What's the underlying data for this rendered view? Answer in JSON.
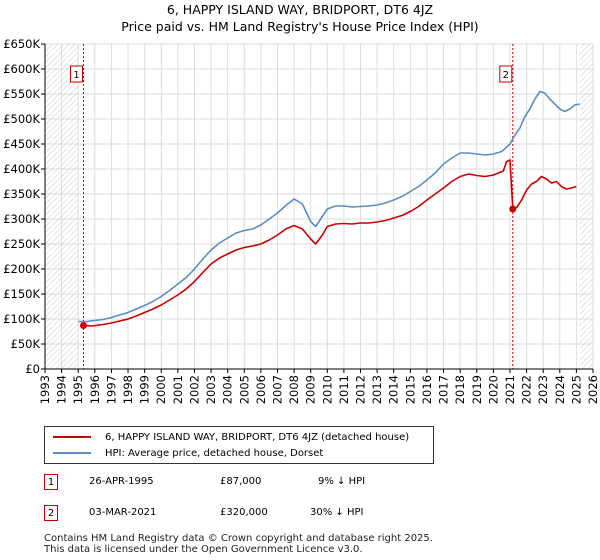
{
  "chart_data": {
    "type": "line",
    "title": "6, HAPPY ISLAND WAY, BRIDPORT, DT6 4JZ",
    "subtitle": "Price paid vs. HM Land Registry's House Price Index (HPI)",
    "xlim": [
      1993,
      2026
    ],
    "ylim": [
      0,
      650000
    ],
    "xticks": [
      "1993",
      "1994",
      "1995",
      "1996",
      "1997",
      "1998",
      "1999",
      "2000",
      "2001",
      "2002",
      "2003",
      "2004",
      "2005",
      "2006",
      "2007",
      "2008",
      "2009",
      "2010",
      "2011",
      "2012",
      "2013",
      "2014",
      "2015",
      "2016",
      "2017",
      "2018",
      "2019",
      "2020",
      "2021",
      "2022",
      "2023",
      "2024",
      "2025",
      "2026"
    ],
    "yticks": [
      {
        "value": 0,
        "label": "£0"
      },
      {
        "value": 50000,
        "label": "£50K"
      },
      {
        "value": 100000,
        "label": "£100K"
      },
      {
        "value": 150000,
        "label": "£150K"
      },
      {
        "value": 200000,
        "label": "£200K"
      },
      {
        "value": 250000,
        "label": "£250K"
      },
      {
        "value": 300000,
        "label": "£300K"
      },
      {
        "value": 350000,
        "label": "£350K"
      },
      {
        "value": 400000,
        "label": "£400K"
      },
      {
        "value": 450000,
        "label": "£450K"
      },
      {
        "value": 500000,
        "label": "£500K"
      },
      {
        "value": 550000,
        "label": "£550K"
      },
      {
        "value": 600000,
        "label": "£600K"
      },
      {
        "value": 650000,
        "label": "£650K"
      }
    ],
    "hatch_before": 1995.0,
    "hatch_after": 2025.2,
    "series": [
      {
        "name": "6, HAPPY ISLAND WAY, BRIDPORT, DT6 4JZ (detached house)",
        "color": "#cc0000",
        "x": [
          1995.32,
          1995.8,
          1996.5,
          1997.0,
          1997.5,
          1998.0,
          1998.5,
          1999.0,
          1999.5,
          2000.0,
          2000.5,
          2001.0,
          2001.5,
          2002.0,
          2002.5,
          2003.0,
          2003.5,
          2004.0,
          2004.5,
          2005.0,
          2005.5,
          2006.0,
          2006.5,
          2007.0,
          2007.5,
          2008.0,
          2008.5,
          2009.0,
          2009.3,
          2009.7,
          2010.0,
          2010.5,
          2011.0,
          2011.5,
          2012.0,
          2012.5,
          2013.0,
          2013.5,
          2014.0,
          2014.5,
          2015.0,
          2015.5,
          2016.0,
          2016.5,
          2017.0,
          2017.5,
          2018.0,
          2018.5,
          2019.0,
          2019.5,
          2020.0,
          2020.3,
          2020.6,
          2020.8,
          2021.0,
          2021.17,
          2021.4,
          2021.7,
          2022.0,
          2022.3,
          2022.6,
          2022.9,
          2023.2,
          2023.5,
          2023.8,
          2024.1,
          2024.4,
          2024.7,
          2025.0
        ],
        "values": [
          87000,
          86000,
          89000,
          92000,
          96000,
          100000,
          106000,
          113000,
          120000,
          128000,
          138000,
          148000,
          160000,
          175000,
          193000,
          210000,
          222000,
          230000,
          238000,
          243000,
          246000,
          250000,
          258000,
          268000,
          280000,
          287000,
          280000,
          260000,
          250000,
          268000,
          285000,
          290000,
          291000,
          290000,
          292000,
          292000,
          294000,
          297000,
          302000,
          307000,
          315000,
          325000,
          338000,
          350000,
          362000,
          375000,
          385000,
          390000,
          387000,
          385000,
          388000,
          392000,
          396000,
          415000,
          418000,
          320000,
          323000,
          338000,
          358000,
          370000,
          375000,
          385000,
          380000,
          372000,
          375000,
          365000,
          360000,
          362000,
          365000
        ]
      },
      {
        "name": "HPI: Average price, detached house, Dorset",
        "color": "#5b8ec5",
        "x": [
          1995.0,
          1995.5,
          1996.0,
          1996.5,
          1997.0,
          1997.5,
          1998.0,
          1998.5,
          1999.0,
          1999.5,
          2000.0,
          2000.5,
          2001.0,
          2001.5,
          2002.0,
          2002.5,
          2003.0,
          2003.5,
          2004.0,
          2004.5,
          2005.0,
          2005.5,
          2006.0,
          2006.5,
          2007.0,
          2007.5,
          2008.0,
          2008.5,
          2009.0,
          2009.3,
          2009.7,
          2010.0,
          2010.5,
          2011.0,
          2011.5,
          2012.0,
          2012.5,
          2013.0,
          2013.5,
          2014.0,
          2014.5,
          2015.0,
          2015.5,
          2016.0,
          2016.5,
          2017.0,
          2017.5,
          2018.0,
          2018.5,
          2019.0,
          2019.5,
          2020.0,
          2020.5,
          2021.0,
          2021.3,
          2021.6,
          2021.9,
          2022.2,
          2022.5,
          2022.8,
          2023.1,
          2023.4,
          2023.7,
          2024.0,
          2024.3,
          2024.6,
          2024.9,
          2025.2
        ],
        "values": [
          95000,
          95000,
          97000,
          99000,
          103000,
          108000,
          113000,
          120000,
          127000,
          135000,
          145000,
          157000,
          170000,
          183000,
          200000,
          220000,
          238000,
          252000,
          262000,
          272000,
          277000,
          280000,
          288000,
          300000,
          312000,
          327000,
          340000,
          330000,
          295000,
          285000,
          305000,
          320000,
          326000,
          326000,
          324000,
          325000,
          326000,
          328000,
          332000,
          338000,
          345000,
          355000,
          365000,
          378000,
          392000,
          410000,
          422000,
          432000,
          432000,
          430000,
          428000,
          430000,
          435000,
          450000,
          468000,
          482000,
          505000,
          520000,
          540000,
          555000,
          552000,
          540000,
          530000,
          520000,
          515000,
          520000,
          528000,
          530000
        ]
      }
    ],
    "annotations": [
      {
        "label": "1",
        "x": 1995.32,
        "value": 87000
      },
      {
        "label": "2",
        "x": 2021.17,
        "value": 320000
      }
    ]
  },
  "legend": {
    "property_label": "6, HAPPY ISLAND WAY, BRIDPORT, DT6 4JZ (detached house)",
    "hpi_label": "HPI: Average price, detached house, Dorset"
  },
  "transactions": [
    {
      "num": "1",
      "date": "26-APR-1995",
      "price": "£87,000",
      "delta": "9% ↓ HPI"
    },
    {
      "num": "2",
      "date": "03-MAR-2021",
      "price": "£320,000",
      "delta": "30% ↓ HPI"
    }
  ],
  "footer": {
    "line1": "Contains HM Land Registry data © Crown copyright and database right 2025.",
    "line2": "This data is licensed under the Open Government Licence v3.0."
  },
  "colors": {
    "property": "#cc0000",
    "hpi": "#5b8ec5",
    "grid": "#dddddd",
    "marker_line": "#cc0000"
  }
}
